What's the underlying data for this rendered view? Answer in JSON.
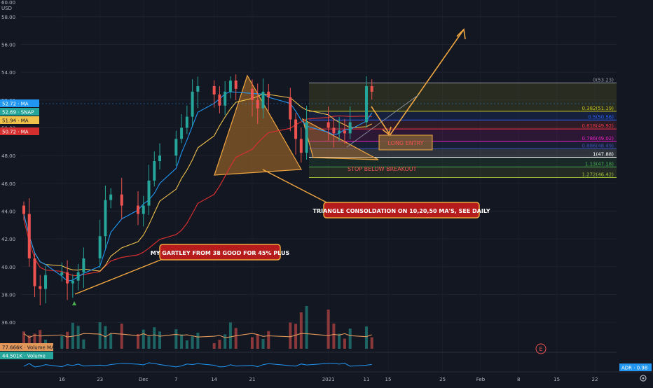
{
  "header": {
    "currency": "USD"
  },
  "chart_data": {
    "type": "candlestick",
    "title": "",
    "xlabel": "",
    "ylabel": "",
    "ylim": [
      35,
      60
    ],
    "y_ticks": [
      36.0,
      38.0,
      40.0,
      42.0,
      44.0,
      46.0,
      48.0,
      50.0,
      52.0,
      54.0,
      56.0,
      58.0
    ],
    "y_tick_labels": [
      "36.00",
      "38.00",
      "40.00",
      "42.00",
      "44.00",
      "46.00",
      "48.00",
      "50.00",
      "52.00",
      "54.00",
      "56.00",
      "58.00"
    ],
    "top_tick_label": "60.00",
    "grid": true,
    "time_axis": {
      "start": "2020-11-09",
      "end": "2021-02-26",
      "ticks": [
        {
          "date": "2020-11-16",
          "label": "16"
        },
        {
          "date": "2020-11-23",
          "label": "23"
        },
        {
          "date": "2020-12-01",
          "label": "Dec"
        },
        {
          "date": "2020-12-07",
          "label": "7"
        },
        {
          "date": "2020-12-14",
          "label": "14"
        },
        {
          "date": "2020-12-21",
          "label": "21"
        },
        {
          "date": "2021-01-04",
          "label": "2021"
        },
        {
          "date": "2021-01-11",
          "label": "11"
        },
        {
          "date": "2021-01-15",
          "label": "15"
        },
        {
          "date": "2021-01-25",
          "label": "25"
        },
        {
          "date": "2021-02-01",
          "label": "Feb"
        },
        {
          "date": "2021-02-08",
          "label": "8"
        },
        {
          "date": "2021-02-15",
          "label": "15"
        },
        {
          "date": "2021-02-22",
          "label": "22"
        }
      ]
    },
    "price_series": [
      {
        "date": "2020-11-09",
        "value": 43.8
      },
      {
        "date": "2020-11-10",
        "value": 40.6
      },
      {
        "date": "2020-11-11",
        "value": 38.6
      },
      {
        "date": "2020-11-12",
        "value": 38.4
      },
      {
        "date": "2020-11-13",
        "value": 39.4
      },
      {
        "date": "2020-11-16",
        "value": 39.6
      },
      {
        "date": "2020-11-17",
        "value": 38.8
      },
      {
        "date": "2020-11-18",
        "value": 39.0
      },
      {
        "date": "2020-11-19",
        "value": 39.6
      },
      {
        "date": "2020-11-20",
        "value": 40.6
      },
      {
        "date": "2020-11-23",
        "value": 42.2
      },
      {
        "date": "2020-11-24",
        "value": 44.8
      },
      {
        "date": "2020-11-25",
        "value": 45.2
      },
      {
        "date": "2020-11-27",
        "value": 44.4
      },
      {
        "date": "2020-11-30",
        "value": 43.8
      },
      {
        "date": "2020-12-01",
        "value": 44.4
      },
      {
        "date": "2020-12-02",
        "value": 46.2
      },
      {
        "date": "2020-12-03",
        "value": 47.6
      },
      {
        "date": "2020-12-04",
        "value": 48.0
      },
      {
        "date": "2020-12-07",
        "value": 49.2
      },
      {
        "date": "2020-12-08",
        "value": 50.0
      },
      {
        "date": "2020-12-09",
        "value": 50.8
      },
      {
        "date": "2020-12-10",
        "value": 52.6
      },
      {
        "date": "2020-12-11",
        "value": 53.0
      },
      {
        "date": "2020-12-14",
        "value": 52.4
      },
      {
        "date": "2020-12-15",
        "value": 51.6
      },
      {
        "date": "2020-12-16",
        "value": 52.6
      },
      {
        "date": "2020-12-17",
        "value": 53.4
      },
      {
        "date": "2020-12-18",
        "value": 52.8
      },
      {
        "date": "2020-12-21",
        "value": 52.0
      },
      {
        "date": "2020-12-22",
        "value": 51.4
      },
      {
        "date": "2020-12-23",
        "value": 52.6
      },
      {
        "date": "2020-12-24",
        "value": 52.2
      },
      {
        "date": "2020-12-28",
        "value": 50.6
      },
      {
        "date": "2020-12-29",
        "value": 49.2
      },
      {
        "date": "2020-12-30",
        "value": 48.2
      },
      {
        "date": "2020-12-31",
        "value": 50.4
      },
      {
        "date": "2021-01-04",
        "value": 50.0
      },
      {
        "date": "2021-01-05",
        "value": 49.6
      },
      {
        "date": "2021-01-06",
        "value": 49.8
      },
      {
        "date": "2021-01-07",
        "value": 49.6
      },
      {
        "date": "2021-01-08",
        "value": 50.4
      },
      {
        "date": "2021-01-11",
        "value": 53.0
      },
      {
        "date": "2021-01-12",
        "value": 52.6
      }
    ],
    "moving_averages_last": [
      {
        "label": "MA",
        "value": "52.72",
        "color": "#2196f3"
      },
      {
        "label": "SNAP",
        "value": "52.69",
        "color": "#26a69a"
      },
      {
        "label": "MA",
        "value": "51.94",
        "color": "#f0c14b"
      },
      {
        "label": "MA",
        "value": "50.72",
        "color": "#d32f2f"
      }
    ],
    "fibonacci": {
      "levels": [
        {
          "ratio": "0",
          "price": "53.23",
          "label": "0(53.23)",
          "color": "#9598a1"
        },
        {
          "ratio": "0.382",
          "price": "51.19",
          "label": "0.382(51.19)",
          "color": "#c9c81f"
        },
        {
          "ratio": "0.5",
          "price": "50.56",
          "label": "0.5(50.56)",
          "color": "#2962ff"
        },
        {
          "ratio": "0.618",
          "price": "49.92",
          "label": "0.618(49.92)",
          "color": "#f23645"
        },
        {
          "ratio": "0.786",
          "price": "49.02",
          "label": "0.786(49.02)",
          "color": "#e91ec8"
        },
        {
          "ratio": "0.886",
          "price": "48.49",
          "label": "0.886(48.49)",
          "color": "#3f51b5"
        },
        {
          "ratio": "1",
          "price": "47.88",
          "label": "1(47.88)",
          "color": "#ffffff"
        },
        {
          "ratio": "1.13",
          "price": "47.18",
          "label": "1.13(47.18)",
          "color": "#4caf50"
        },
        {
          "ratio": "1.272",
          "price": "46.42",
          "label": "1.272(46.42)",
          "color": "#9cbf3a"
        }
      ]
    },
    "annotations": {
      "gartley": "MY GARTLEY FROM 38 GOOD FOR 45% PLUS",
      "triangle": "TRIANGLE CONSOLDATION ON 10,20,50 MA'S,  SEE DAILY",
      "buy_box": "LONG ENTRY",
      "stop": "STOP BELOW BREAKOUT",
      "earnings_marker": "E"
    },
    "volume": {
      "ma_label": "77.666K",
      "ma_name": "Volume MA",
      "last_label": "44.501K",
      "last_name": "Volume"
    },
    "adr": {
      "name": "ADR",
      "value": "0.98"
    },
    "current_price_label": "52.72"
  },
  "colors": {
    "bg": "#131722",
    "grid": "#1f2430",
    "axis_text": "#b2b5be",
    "up": "#26a69a",
    "down": "#ef5350",
    "triangle_fill": "#b8742a",
    "arrow": "#f0a640",
    "label_bg": "#b71c1c",
    "label_border": "#f0a640"
  }
}
